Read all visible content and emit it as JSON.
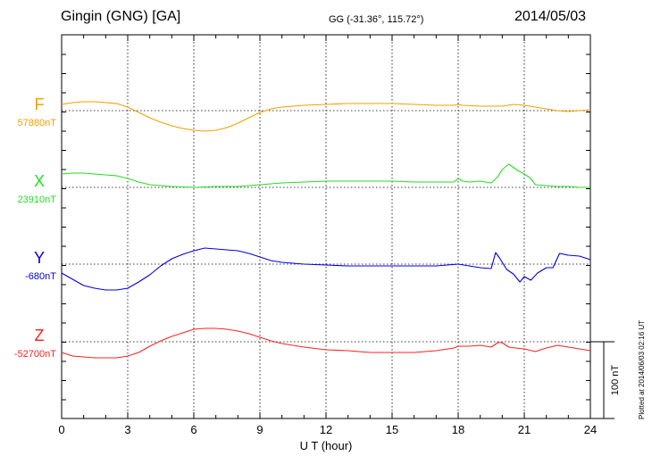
{
  "header": {
    "station": "Gingin (GNG)  [GA]",
    "coords": "GG (-31.36°, 115.72°)",
    "date": "2014/05/03"
  },
  "plotted_note": "Plotted at 2014/06/03 02:16 UT",
  "chart_data": {
    "type": "line",
    "xlabel": "U T (hour)",
    "xlim": [
      0,
      24
    ],
    "xticks": [
      0,
      3,
      6,
      9,
      12,
      15,
      18,
      21,
      24
    ],
    "scale_bar_label": "100 nT",
    "scale_bar_nT": 100,
    "grid": true,
    "series": [
      {
        "name": "F",
        "baseline_label": "57880nT",
        "baseline_nT": 57880,
        "color": "#f0a000",
        "x": [
          0,
          0.5,
          1,
          1.5,
          2,
          2.5,
          3,
          3.5,
          4,
          4.5,
          5,
          5.5,
          6,
          6.5,
          7,
          7.5,
          8,
          8.5,
          9,
          9.5,
          10,
          11,
          12,
          13,
          14,
          15,
          16,
          17,
          17.8,
          18,
          18.2,
          19,
          20,
          20.5,
          21,
          21.5,
          22,
          22.5,
          23,
          23.5,
          24
        ],
        "y": [
          7,
          9,
          10,
          10,
          9,
          8,
          4,
          -2,
          -8,
          -13,
          -17,
          -20,
          -22,
          -23,
          -22,
          -19,
          -14,
          -8,
          -2,
          2,
          4,
          6,
          7,
          8,
          8,
          8,
          7,
          6,
          6,
          7,
          6,
          5,
          5,
          7,
          6,
          4,
          2,
          0,
          -1,
          0,
          1
        ]
      },
      {
        "name": "X",
        "baseline_label": "23910nT",
        "baseline_nT": 23910,
        "color": "#22dd22",
        "x": [
          0,
          0.5,
          1,
          1.5,
          2,
          2.5,
          3,
          3.5,
          4,
          4.5,
          5,
          6,
          7,
          8,
          9,
          10,
          11,
          12,
          13,
          14,
          15,
          16,
          17,
          17.8,
          18,
          18.2,
          18.5,
          19,
          19.5,
          19.8,
          20,
          20.3,
          20.7,
          21,
          21.3,
          21.5,
          22,
          22.5,
          23,
          23.5,
          24
        ],
        "y": [
          15,
          16,
          16,
          15,
          14,
          13,
          10,
          6,
          3,
          2,
          1,
          0,
          1,
          1,
          3,
          5,
          6,
          7,
          7,
          7,
          7,
          6,
          6,
          6,
          10,
          7,
          6,
          7,
          5,
          12,
          20,
          26,
          19,
          15,
          10,
          3,
          2,
          1,
          1,
          0,
          0
        ]
      },
      {
        "name": "Y",
        "baseline_label": "-680nT",
        "baseline_nT": -680,
        "color": "#0000e0",
        "x": [
          0,
          0.5,
          1,
          1.5,
          2,
          2.5,
          3,
          3.5,
          4,
          4.5,
          5,
          5.5,
          6,
          6.5,
          7,
          7.5,
          8,
          8.5,
          9,
          9.5,
          10,
          11,
          12,
          13,
          14,
          15,
          16,
          17,
          17.5,
          18,
          18.5,
          19,
          19.5,
          19.7,
          19.9,
          20.2,
          20.5,
          20.8,
          21,
          21.3,
          21.6,
          22,
          22.3,
          22.6,
          23,
          23.5,
          24
        ],
        "y": [
          -10,
          -17,
          -24,
          -27,
          -29,
          -29,
          -27,
          -20,
          -12,
          -2,
          6,
          11,
          15,
          18,
          17,
          16,
          15,
          12,
          8,
          4,
          2,
          0,
          -1,
          -2,
          -2,
          -2,
          -2,
          -2,
          -1,
          0,
          -2,
          -4,
          -5,
          13,
          6,
          -6,
          -11,
          -20,
          -14,
          -18,
          -10,
          -4,
          -4,
          12,
          10,
          9,
          5
        ]
      },
      {
        "name": "Z",
        "baseline_label": "-52700nT",
        "baseline_nT": -52700,
        "color": "#ff2222",
        "x": [
          0,
          0.5,
          1,
          1.5,
          2,
          2.5,
          3,
          3.5,
          4,
          4.5,
          5,
          5.5,
          6,
          6.5,
          7,
          7.5,
          8,
          8.5,
          9,
          9.5,
          10,
          11,
          12,
          13,
          14,
          15,
          16,
          17,
          17.8,
          18,
          18.5,
          19,
          19.5,
          19.8,
          20,
          20.3,
          20.6,
          21,
          21.5,
          22,
          22.5,
          23,
          23.5,
          24
        ],
        "y": [
          -12,
          -16,
          -17,
          -18,
          -18,
          -18,
          -16,
          -12,
          -5,
          1,
          6,
          10,
          14,
          15,
          15,
          14,
          12,
          9,
          5,
          1,
          -2,
          -6,
          -9,
          -10,
          -12,
          -12,
          -12,
          -10,
          -7,
          -5,
          -5,
          -4,
          -6,
          -1,
          -1,
          -6,
          -7,
          -8,
          -11,
          -7,
          -4,
          -6,
          -8,
          -10
        ]
      }
    ]
  }
}
